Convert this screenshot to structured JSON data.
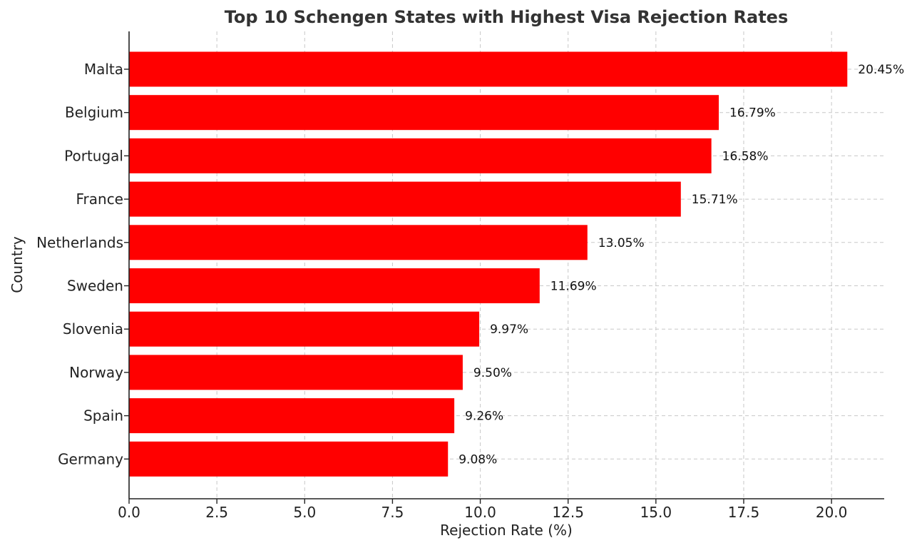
{
  "chart_data": {
    "type": "bar",
    "orientation": "horizontal",
    "title": "Top 10 Schengen States with Highest Visa Rejection Rates",
    "xlabel": "Rejection Rate (%)",
    "ylabel": "Country",
    "categories": [
      "Malta",
      "Belgium",
      "Portugal",
      "France",
      "Netherlands",
      "Sweden",
      "Slovenia",
      "Norway",
      "Spain",
      "Germany"
    ],
    "values": [
      20.45,
      16.79,
      16.58,
      15.71,
      13.05,
      11.69,
      9.97,
      9.5,
      9.26,
      9.08
    ],
    "data_labels": [
      "20.45%",
      "16.79%",
      "16.58%",
      "15.71%",
      "13.05%",
      "11.69%",
      "9.97%",
      "9.50%",
      "9.26%",
      "9.08%"
    ],
    "xlim": [
      0,
      21.5
    ],
    "xticks": [
      0,
      2.5,
      5,
      7.5,
      10,
      12.5,
      15,
      17.5,
      20
    ],
    "xtick_labels": [
      "0.0",
      "2.5",
      "5.0",
      "7.5",
      "10.0",
      "12.5",
      "15.0",
      "17.5",
      "20.0"
    ],
    "grid": true,
    "bar_color": "#ff0000"
  }
}
